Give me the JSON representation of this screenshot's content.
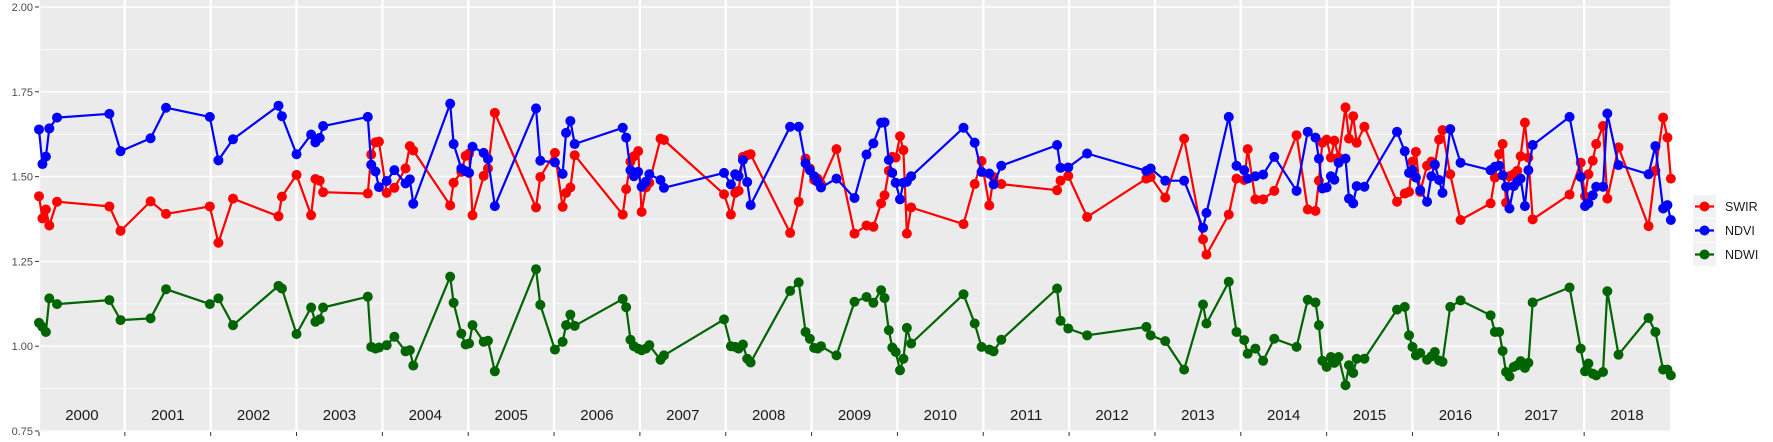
{
  "chart_data": {
    "type": "line",
    "title": "",
    "xlabel": "",
    "ylabel": "",
    "ylim": [
      0.75,
      2.0
    ],
    "xlim": [
      2000,
      2019
    ],
    "y_ticks": [
      "0.75",
      "1.00",
      "1.25",
      "1.50",
      "1.75",
      "2.00"
    ],
    "year_labels": [
      "2000",
      "2001",
      "2002",
      "2003",
      "2004",
      "2005",
      "2006",
      "2007",
      "2008",
      "2009",
      "2010",
      "2011",
      "2012",
      "2013",
      "2014",
      "2015",
      "2016",
      "2017",
      "2018"
    ],
    "grid": true,
    "legend_position": "right",
    "markers": true,
    "x": [
      2000.0,
      2000.04,
      2000.08,
      2000.12,
      2000.21,
      2000.82,
      2000.95,
      2001.3,
      2001.48,
      2001.99,
      2002.09,
      2002.26,
      2002.79,
      2002.83,
      2003.0,
      2003.17,
      2003.22,
      2003.27,
      2003.31,
      2003.83,
      2003.87,
      2003.92,
      2003.96,
      2004.05,
      2004.14,
      2004.27,
      2004.32,
      2004.36,
      2004.79,
      2004.83,
      2004.92,
      2004.97,
      2005.01,
      2005.05,
      2005.18,
      2005.23,
      2005.31,
      2005.79,
      2005.84,
      2006.01,
      2006.1,
      2006.14,
      2006.19,
      2006.24,
      2006.8,
      2006.84,
      2006.89,
      2006.93,
      2006.98,
      2007.02,
      2007.07,
      2007.11,
      2007.24,
      2007.28,
      2007.98,
      2008.06,
      2008.11,
      2008.15,
      2008.2,
      2008.25,
      2008.29,
      2008.75,
      2008.85,
      2008.93,
      2008.98,
      2009.03,
      2009.07,
      2009.11,
      2009.29,
      2009.5,
      2009.64,
      2009.72,
      2009.81,
      2009.85,
      2009.9,
      2009.94,
      2009.98,
      2010.03,
      2010.07,
      2010.11,
      2010.16,
      2010.77,
      2010.9,
      2010.98,
      2011.07,
      2011.12,
      2011.21,
      2011.86,
      2011.9,
      2011.99,
      2012.21,
      2012.9,
      2012.95,
      2013.12,
      2013.34,
      2013.56,
      2013.6,
      2013.86,
      2013.95,
      2014.04,
      2014.08,
      2014.17,
      2014.26,
      2014.39,
      2014.65,
      2014.78,
      2014.87,
      2014.91,
      2014.95,
      2015.0,
      2015.05,
      2015.09,
      2015.14,
      2015.22,
      2015.26,
      2015.31,
      2015.35,
      2015.44,
      2015.82,
      2015.91,
      2015.96,
      2016.0,
      2016.04,
      2016.09,
      2016.17,
      2016.22,
      2016.26,
      2016.31,
      2016.35,
      2016.44,
      2016.56,
      2016.91,
      2016.96,
      2017.01,
      2017.05,
      2017.09,
      2017.13,
      2017.18,
      2017.22,
      2017.26,
      2017.31,
      2017.35,
      2017.4,
      2017.83,
      2017.96,
      2018.01,
      2018.05,
      2018.1,
      2018.14,
      2018.22,
      2018.27,
      2018.4,
      2018.75,
      2018.83,
      2018.92,
      2018.97,
      2019.01
    ],
    "series": [
      {
        "name": "SWIR",
        "color": "#FF0000",
        "values": [
          1.442,
          1.377,
          1.403,
          1.356,
          1.426,
          1.412,
          1.34,
          1.427,
          1.39,
          1.412,
          1.305,
          1.435,
          1.383,
          1.441,
          1.505,
          1.386,
          1.493,
          1.488,
          1.454,
          1.45,
          1.565,
          1.601,
          1.603,
          1.452,
          1.467,
          1.524,
          1.59,
          1.577,
          1.415,
          1.482,
          1.514,
          1.561,
          1.568,
          1.386,
          1.502,
          1.524,
          1.688,
          1.409,
          1.499,
          1.57,
          1.411,
          1.452,
          1.468,
          1.563,
          1.388,
          1.463,
          1.544,
          1.56,
          1.575,
          1.396,
          1.468,
          1.482,
          1.612,
          1.608,
          1.448,
          1.388,
          1.452,
          1.458,
          1.558,
          1.563,
          1.566,
          1.334,
          1.426,
          1.553,
          1.524,
          1.49,
          1.494,
          1.478,
          1.581,
          1.332,
          1.356,
          1.352,
          1.421,
          1.445,
          1.517,
          1.558,
          1.556,
          1.619,
          1.578,
          1.332,
          1.409,
          1.36,
          1.478,
          1.546,
          1.415,
          1.499,
          1.478,
          1.46,
          1.488,
          1.502,
          1.381,
          1.494,
          1.499,
          1.438,
          1.612,
          1.315,
          1.27,
          1.388,
          1.494,
          1.49,
          1.581,
          1.433,
          1.433,
          1.458,
          1.622,
          1.403,
          1.399,
          1.488,
          1.6,
          1.609,
          1.556,
          1.606,
          1.556,
          1.704,
          1.612,
          1.678,
          1.6,
          1.647,
          1.426,
          1.45,
          1.455,
          1.544,
          1.573,
          1.455,
          1.532,
          1.544,
          1.534,
          1.609,
          1.637,
          1.507,
          1.372,
          1.421,
          1.497,
          1.566,
          1.596,
          1.423,
          1.501,
          1.507,
          1.517,
          1.56,
          1.659,
          1.556,
          1.374,
          1.447,
          1.541,
          1.442,
          1.507,
          1.547,
          1.596,
          1.649,
          1.435,
          1.586,
          1.354,
          1.517,
          1.674,
          1.615,
          1.494
        ]
      },
      {
        "name": "NDVI",
        "color": "#0000FF",
        "values": [
          1.639,
          1.537,
          1.559,
          1.642,
          1.674,
          1.685,
          1.575,
          1.613,
          1.703,
          1.676,
          1.548,
          1.61,
          1.709,
          1.678,
          1.566,
          1.624,
          1.601,
          1.614,
          1.649,
          1.676,
          1.535,
          1.515,
          1.469,
          1.487,
          1.519,
          1.48,
          1.492,
          1.42,
          1.715,
          1.596,
          1.524,
          1.516,
          1.511,
          1.588,
          1.57,
          1.552,
          1.413,
          1.701,
          1.547,
          1.542,
          1.508,
          1.629,
          1.664,
          1.596,
          1.644,
          1.615,
          1.519,
          1.501,
          1.514,
          1.47,
          1.485,
          1.507,
          1.49,
          1.467,
          1.511,
          1.477,
          1.507,
          1.501,
          1.549,
          1.484,
          1.416,
          1.647,
          1.647,
          1.539,
          1.519,
          1.501,
          1.485,
          1.468,
          1.494,
          1.437,
          1.565,
          1.598,
          1.659,
          1.66,
          1.549,
          1.511,
          1.482,
          1.433,
          1.482,
          1.485,
          1.501,
          1.644,
          1.6,
          1.514,
          1.509,
          1.477,
          1.532,
          1.593,
          1.526,
          1.527,
          1.568,
          1.517,
          1.524,
          1.488,
          1.488,
          1.349,
          1.393,
          1.676,
          1.532,
          1.519,
          1.494,
          1.501,
          1.506,
          1.558,
          1.458,
          1.632,
          1.615,
          1.553,
          1.465,
          1.468,
          1.501,
          1.491,
          1.541,
          1.553,
          1.435,
          1.421,
          1.472,
          1.47,
          1.632,
          1.575,
          1.511,
          1.519,
          1.497,
          1.46,
          1.426,
          1.501,
          1.536,
          1.49,
          1.452,
          1.64,
          1.541,
          1.519,
          1.529,
          1.532,
          1.504,
          1.47,
          1.406,
          1.472,
          1.485,
          1.494,
          1.413,
          1.519,
          1.593,
          1.676,
          1.499,
          1.413,
          1.421,
          1.445,
          1.47,
          1.47,
          1.686,
          1.534,
          1.507,
          1.59,
          1.406,
          1.416,
          1.372
        ]
      },
      {
        "name": "NDWI",
        "color": "#006400",
        "values": [
          1.069,
          1.057,
          1.042,
          1.141,
          1.124,
          1.136,
          1.077,
          1.082,
          1.168,
          1.124,
          1.141,
          1.062,
          1.178,
          1.17,
          1.036,
          1.114,
          1.072,
          1.079,
          1.114,
          1.146,
          0.998,
          0.993,
          0.996,
          1.003,
          1.028,
          0.985,
          0.988,
          0.943,
          1.205,
          1.128,
          1.037,
          1.005,
          1.008,
          1.062,
          1.013,
          1.016,
          0.926,
          1.227,
          1.122,
          0.99,
          1.013,
          1.062,
          1.093,
          1.06,
          1.139,
          1.115,
          1.019,
          1.0,
          0.993,
          0.988,
          0.993,
          1.003,
          0.96,
          0.973,
          1.079,
          1.0,
          0.998,
          0.993,
          1.005,
          0.963,
          0.952,
          1.163,
          1.188,
          1.042,
          1.022,
          0.995,
          0.993,
          1.0,
          0.973,
          1.131,
          1.145,
          1.128,
          1.165,
          1.142,
          1.047,
          0.996,
          0.983,
          0.929,
          0.963,
          1.054,
          1.008,
          1.153,
          1.067,
          0.998,
          0.99,
          0.985,
          1.019,
          1.17,
          1.075,
          1.052,
          1.032,
          1.057,
          1.032,
          1.015,
          0.931,
          1.123,
          1.067,
          1.19,
          1.042,
          1.018,
          0.978,
          0.993,
          0.957,
          1.022,
          0.998,
          1.137,
          1.129,
          1.062,
          0.957,
          0.939,
          0.968,
          0.951,
          0.968,
          0.885,
          0.944,
          0.921,
          0.963,
          0.963,
          1.108,
          1.116,
          1.032,
          0.998,
          0.973,
          0.98,
          0.96,
          0.97,
          0.983,
          0.958,
          0.954,
          1.116,
          1.135,
          1.091,
          1.042,
          1.042,
          0.986,
          0.924,
          0.911,
          0.939,
          0.944,
          0.956,
          0.936,
          0.951,
          1.129,
          1.173,
          0.993,
          0.926,
          0.949,
          0.919,
          0.914,
          0.924,
          1.162,
          0.975,
          1.083,
          1.042,
          0.931,
          0.931,
          0.914
        ]
      }
    ]
  }
}
